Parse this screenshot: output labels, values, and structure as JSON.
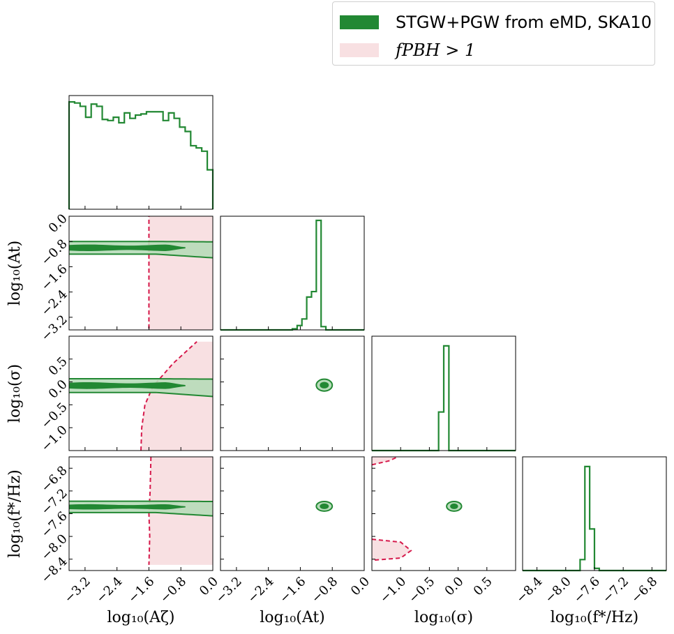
{
  "colors": {
    "green": "#228833",
    "green_fill_light": "#b7dcb9",
    "green_fill_dark": "#228833",
    "gray_fill": "#c8c8b4",
    "red": "#d6194b",
    "pink": "#f8e0e2"
  },
  "legend": {
    "items": [
      {
        "label": "STGW+PGW from eMD, SKA10",
        "swatch": "green",
        "style": "sans"
      },
      {
        "label": "f_PBH > 1",
        "display": "fPBH > 1",
        "swatch": "pink",
        "style": "serif"
      }
    ]
  },
  "chart_data": {
    "type": "corner",
    "parameters": [
      {
        "name": "log10(A_zeta)",
        "label": "log₁₀(Aζ)",
        "range": [
          -3.6,
          0.0
        ],
        "ticks": [
          -3.2,
          -2.4,
          -1.6,
          -0.8,
          0.0
        ],
        "tick_labels": [
          "−3.2",
          "−2.4",
          "−1.6",
          "−0.8",
          "0.0"
        ]
      },
      {
        "name": "log10(A_t)",
        "label": "log₁₀(At)",
        "range": [
          -3.6,
          0.0
        ],
        "ticks": [
          -3.2,
          -2.4,
          -1.6,
          -0.8,
          0.0
        ],
        "tick_labels": [
          "−3.2",
          "−2.4",
          "−1.6",
          "−0.8",
          "0.0"
        ]
      },
      {
        "name": "log10(sigma)",
        "label": "log₁₀(σ)",
        "range": [
          -1.5,
          1.0
        ],
        "ticks": [
          -1.0,
          -0.5,
          0.0,
          0.5
        ],
        "tick_labels": [
          "−1.0",
          "−0.5",
          "0.0",
          "0.5"
        ]
      },
      {
        "name": "log10(f_*/Hz)",
        "label": "log₁₀(f*/Hz)",
        "range": [
          -8.6,
          -6.6
        ],
        "ticks": [
          -8.4,
          -8.0,
          -7.6,
          -7.2,
          -6.8
        ],
        "tick_labels": [
          "−8.4",
          "−8.0",
          "−7.6",
          "−7.2",
          "−6.8"
        ]
      }
    ],
    "diagonal_histograms": [
      {
        "param": "log10(A_zeta)",
        "bins": [
          -3.6,
          0.0
        ],
        "values": [
          0.98,
          0.97,
          0.94,
          0.84,
          0.96,
          0.94,
          0.82,
          0.81,
          0.84,
          0.79,
          0.88,
          0.83,
          0.86,
          0.87,
          0.89,
          0.89,
          0.89,
          0.81,
          0.88,
          0.83,
          0.75,
          0.71,
          0.58,
          0.56,
          0.53,
          0.36
        ]
      },
      {
        "param": "log10(A_t)",
        "bins": [
          -3.6,
          0.0
        ],
        "values": [
          0,
          0,
          0,
          0,
          0,
          0,
          0,
          0,
          0,
          0,
          0,
          0,
          0,
          0,
          0,
          0.01,
          0.04,
          0.1,
          0.3,
          0.35,
          1.0,
          0.03,
          0,
          0,
          0,
          0,
          0,
          0,
          0,
          0
        ]
      },
      {
        "param": "log10(sigma)",
        "bins": [
          -1.5,
          1.0
        ],
        "values": [
          0,
          0,
          0,
          0,
          0,
          0,
          0,
          0,
          0,
          0,
          0,
          0,
          0,
          0.35,
          0.95,
          0,
          0,
          0,
          0,
          0,
          0,
          0,
          0,
          0,
          0,
          0,
          0,
          0
        ]
      },
      {
        "param": "log10(f_*/Hz)",
        "bins": [
          -8.6,
          -6.6
        ],
        "values": [
          0,
          0,
          0,
          0,
          0,
          0,
          0,
          0,
          0,
          0,
          0,
          0,
          0.1,
          0.95,
          0.38,
          0.02,
          0,
          0,
          0,
          0,
          0,
          0,
          0,
          0,
          0,
          0,
          0,
          0,
          0,
          0
        ]
      }
    ],
    "posterior_2d": [
      {
        "x": "log10(A_zeta)",
        "y": "log10(A_t)",
        "band_center": -1.0,
        "inner_halfwidth": 0.07,
        "outer_halfwidth": 0.2
      },
      {
        "x": "log10(A_zeta)",
        "y": "log10(sigma)",
        "band_center": -0.08,
        "inner_halfwidth": 0.05,
        "outer_halfwidth": 0.15
      },
      {
        "x": "log10(A_zeta)",
        "y": "log10(f_*/Hz)",
        "band_center": -7.48,
        "inner_halfwidth": 0.03,
        "outer_halfwidth": 0.1
      },
      {
        "x": "log10(A_t)",
        "y": "log10(sigma)",
        "center": [
          -1.0,
          -0.07
        ],
        "inner": [
          0.1,
          0.06
        ],
        "outer": [
          0.2,
          0.13
        ]
      },
      {
        "x": "log10(A_t)",
        "y": "log10(f_*/Hz)",
        "center": [
          -1.0,
          -7.47
        ],
        "inner": [
          0.1,
          0.04
        ],
        "outer": [
          0.2,
          0.085
        ]
      },
      {
        "x": "log10(sigma)",
        "y": "log10(f_*/Hz)",
        "center": [
          -0.07,
          -7.47
        ],
        "inner": [
          0.06,
          0.04
        ],
        "outer": [
          0.13,
          0.085
        ]
      }
    ],
    "exclusion_fPBH_gt_1": [
      {
        "x": "log10(A_zeta)",
        "y": "log10(A_t)",
        "boundary_x": -1.6
      },
      {
        "x": "log10(A_zeta)",
        "y": "log10(sigma)",
        "boundary": [
          [
            -1.8,
            -1.5
          ],
          [
            -1.78,
            -1.0
          ],
          [
            -1.7,
            -0.5
          ],
          [
            -1.5,
            -0.1
          ],
          [
            -1.0,
            0.4
          ],
          [
            -0.4,
            0.88
          ]
        ]
      },
      {
        "x": "log10(A_zeta)",
        "y": "log10(f_*/Hz)",
        "boundary": [
          [
            -1.55,
            -6.6
          ],
          [
            -1.57,
            -7.2
          ],
          [
            -1.6,
            -7.6
          ],
          [
            -1.58,
            -8.0
          ],
          [
            -1.6,
            -8.5
          ]
        ]
      },
      {
        "x": "log10(sigma)",
        "y": "log10(f_*/Hz)",
        "boundary_upper": [
          [
            -1.5,
            -6.74
          ],
          [
            -1.2,
            -6.67
          ],
          [
            -1.05,
            -6.6
          ]
        ],
        "boundary_lower": [
          [
            -1.5,
            -8.05
          ],
          [
            -1.0,
            -8.1
          ],
          [
            -0.82,
            -8.25
          ],
          [
            -1.0,
            -8.38
          ],
          [
            -1.5,
            -8.42
          ]
        ]
      }
    ]
  }
}
